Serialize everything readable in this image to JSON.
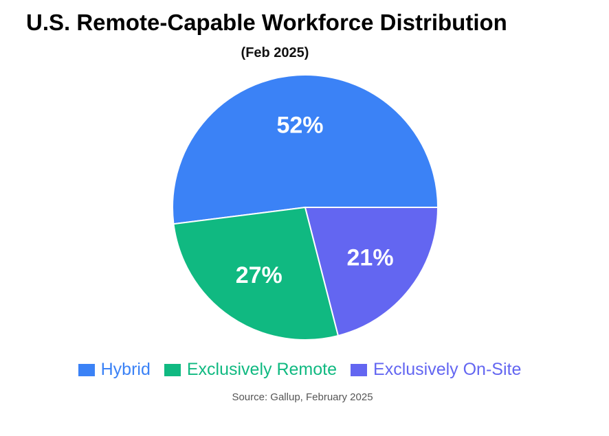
{
  "chart_data": {
    "type": "pie",
    "title": "U.S. Remote-Capable Workforce Distribution",
    "subtitle": "(Feb 2025)",
    "categories": [
      "Hybrid",
      "Exclusively Remote",
      "Exclusively On-Site"
    ],
    "values": [
      52,
      27,
      21
    ],
    "data_labels": [
      "52%",
      "27%",
      "21%"
    ],
    "colors": [
      "#3b82f6",
      "#10b981",
      "#6366f1"
    ],
    "legend_position": "bottom",
    "source": "Source: Gallup, February 2025"
  }
}
